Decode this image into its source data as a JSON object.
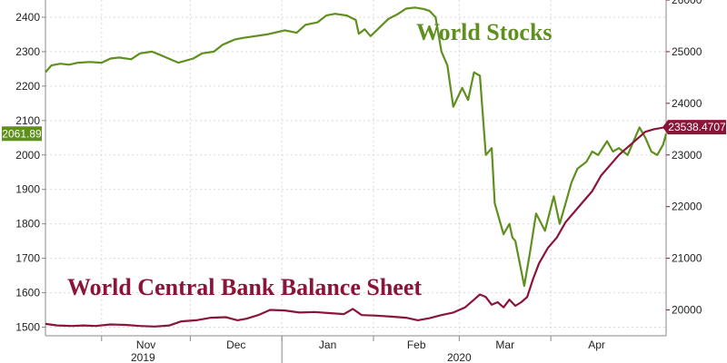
{
  "chart_data": {
    "type": "line",
    "title": "",
    "xlabel": "",
    "ylabel_left": "",
    "ylabel_right": "",
    "x_start": "2019-10-13",
    "x_end": "2020-05-10",
    "x_month_ticks": [
      {
        "label": "Nov",
        "date": "2019-11-01"
      },
      {
        "label": "Dec",
        "date": "2019-12-01"
      },
      {
        "label": "Jan",
        "date": "2020-01-01"
      },
      {
        "label": "Feb",
        "date": "2020-02-01"
      },
      {
        "label": "Mar",
        "date": "2020-03-01"
      },
      {
        "label": "Apr",
        "date": "2020-04-01"
      }
    ],
    "x_year_ticks": [
      {
        "label": "2019",
        "date": "2019-11-15"
      },
      {
        "label": "2020",
        "date": "2020-03-01"
      }
    ],
    "y_left": {
      "ticks": [
        1500,
        1600,
        1700,
        1800,
        1900,
        2000,
        2100,
        2200,
        2300,
        2400
      ],
      "range": [
        1475,
        2450
      ]
    },
    "y_right": {
      "ticks": [
        20000,
        21000,
        22000,
        23000,
        24000,
        25000,
        26000
      ],
      "range": [
        19500,
        26000
      ]
    },
    "grid": true,
    "series": [
      {
        "name": "World Stocks",
        "axis": "left",
        "color": "#5f8f1f",
        "last_value_label": "2061.89",
        "points": [
          [
            "2019-10-13",
            2240
          ],
          [
            "2019-10-15",
            2260
          ],
          [
            "2019-10-18",
            2265
          ],
          [
            "2019-10-21",
            2262
          ],
          [
            "2019-10-24",
            2268
          ],
          [
            "2019-10-28",
            2270
          ],
          [
            "2019-11-01",
            2268
          ],
          [
            "2019-11-04",
            2280
          ],
          [
            "2019-11-07",
            2283
          ],
          [
            "2019-11-11",
            2278
          ],
          [
            "2019-11-14",
            2295
          ],
          [
            "2019-11-18",
            2300
          ],
          [
            "2019-11-21",
            2290
          ],
          [
            "2019-11-25",
            2275
          ],
          [
            "2019-11-27",
            2268
          ],
          [
            "2019-12-02",
            2280
          ],
          [
            "2019-12-05",
            2295
          ],
          [
            "2019-12-09",
            2300
          ],
          [
            "2019-12-12",
            2320
          ],
          [
            "2019-12-16",
            2335
          ],
          [
            "2019-12-19",
            2340
          ],
          [
            "2019-12-23",
            2345
          ],
          [
            "2019-12-27",
            2350
          ],
          [
            "2020-01-02",
            2362
          ],
          [
            "2020-01-06",
            2355
          ],
          [
            "2020-01-09",
            2378
          ],
          [
            "2020-01-13",
            2385
          ],
          [
            "2020-01-16",
            2405
          ],
          [
            "2020-01-19",
            2410
          ],
          [
            "2020-01-23",
            2405
          ],
          [
            "2020-01-26",
            2392
          ],
          [
            "2020-01-27",
            2352
          ],
          [
            "2020-01-29",
            2365
          ],
          [
            "2020-01-31",
            2345
          ],
          [
            "2020-02-03",
            2370
          ],
          [
            "2020-02-06",
            2395
          ],
          [
            "2020-02-09",
            2408
          ],
          [
            "2020-02-12",
            2425
          ],
          [
            "2020-02-15",
            2428
          ],
          [
            "2020-02-18",
            2424
          ],
          [
            "2020-02-20",
            2418
          ],
          [
            "2020-02-22",
            2400
          ],
          [
            "2020-02-24",
            2300
          ],
          [
            "2020-02-26",
            2260
          ],
          [
            "2020-02-28",
            2140
          ],
          [
            "2020-03-02",
            2195
          ],
          [
            "2020-03-04",
            2160
          ],
          [
            "2020-03-06",
            2240
          ],
          [
            "2020-03-08",
            2230
          ],
          [
            "2020-03-10",
            2000
          ],
          [
            "2020-03-12",
            2020
          ],
          [
            "2020-03-13",
            1860
          ],
          [
            "2020-03-16",
            1770
          ],
          [
            "2020-03-18",
            1800
          ],
          [
            "2020-03-19",
            1760
          ],
          [
            "2020-03-20",
            1750
          ],
          [
            "2020-03-23",
            1620
          ],
          [
            "2020-03-25",
            1720
          ],
          [
            "2020-03-27",
            1830
          ],
          [
            "2020-03-30",
            1780
          ],
          [
            "2020-04-02",
            1880
          ],
          [
            "2020-04-04",
            1800
          ],
          [
            "2020-04-06",
            1860
          ],
          [
            "2020-04-08",
            1920
          ],
          [
            "2020-04-10",
            1960
          ],
          [
            "2020-04-13",
            1980
          ],
          [
            "2020-04-15",
            2010
          ],
          [
            "2020-04-17",
            2000
          ],
          [
            "2020-04-20",
            2040
          ],
          [
            "2020-04-22",
            2010
          ],
          [
            "2020-04-24",
            2020
          ],
          [
            "2020-04-27",
            2000
          ],
          [
            "2020-04-29",
            2040
          ],
          [
            "2020-05-01",
            2080
          ],
          [
            "2020-05-03",
            2050
          ],
          [
            "2020-05-05",
            2010
          ],
          [
            "2020-05-07",
            2000
          ],
          [
            "2020-05-09",
            2030
          ],
          [
            "2020-05-10",
            2061.89
          ]
        ]
      },
      {
        "name": "World Central Bank Balance Sheet",
        "axis": "right",
        "color": "#8a1538",
        "last_value_label": "23538.4707",
        "points": [
          [
            "2019-10-13",
            19730
          ],
          [
            "2019-10-17",
            19700
          ],
          [
            "2019-10-22",
            19690
          ],
          [
            "2019-10-26",
            19700
          ],
          [
            "2019-10-30",
            19690
          ],
          [
            "2019-11-04",
            19720
          ],
          [
            "2019-11-09",
            19710
          ],
          [
            "2019-11-14",
            19690
          ],
          [
            "2019-11-19",
            19680
          ],
          [
            "2019-11-24",
            19700
          ],
          [
            "2019-11-28",
            19780
          ],
          [
            "2019-12-03",
            19800
          ],
          [
            "2019-12-08",
            19850
          ],
          [
            "2019-12-13",
            19860
          ],
          [
            "2019-12-17",
            19800
          ],
          [
            "2019-12-20",
            19830
          ],
          [
            "2019-12-24",
            19900
          ],
          [
            "2019-12-28",
            20000
          ],
          [
            "2020-01-02",
            19990
          ],
          [
            "2020-01-07",
            19950
          ],
          [
            "2020-01-12",
            19960
          ],
          [
            "2020-01-17",
            19940
          ],
          [
            "2020-01-22",
            19920
          ],
          [
            "2020-01-25",
            20020
          ],
          [
            "2020-01-28",
            19900
          ],
          [
            "2020-02-02",
            19890
          ],
          [
            "2020-02-07",
            19870
          ],
          [
            "2020-02-12",
            19850
          ],
          [
            "2020-02-16",
            19800
          ],
          [
            "2020-02-20",
            19840
          ],
          [
            "2020-02-24",
            19900
          ],
          [
            "2020-02-28",
            19950
          ],
          [
            "2020-03-03",
            20050
          ],
          [
            "2020-03-06",
            20200
          ],
          [
            "2020-03-08",
            20300
          ],
          [
            "2020-03-10",
            20250
          ],
          [
            "2020-03-12",
            20100
          ],
          [
            "2020-03-14",
            20150
          ],
          [
            "2020-03-16",
            20050
          ],
          [
            "2020-03-18",
            20200
          ],
          [
            "2020-03-20",
            20080
          ],
          [
            "2020-03-22",
            20150
          ],
          [
            "2020-03-24",
            20250
          ],
          [
            "2020-03-26",
            20600
          ],
          [
            "2020-03-28",
            20900
          ],
          [
            "2020-03-31",
            21200
          ],
          [
            "2020-04-03",
            21400
          ],
          [
            "2020-04-06",
            21700
          ],
          [
            "2020-04-09",
            21900
          ],
          [
            "2020-04-12",
            22100
          ],
          [
            "2020-04-15",
            22300
          ],
          [
            "2020-04-18",
            22600
          ],
          [
            "2020-04-21",
            22800
          ],
          [
            "2020-04-24",
            23000
          ],
          [
            "2020-04-27",
            23150
          ],
          [
            "2020-04-30",
            23300
          ],
          [
            "2020-05-03",
            23450
          ],
          [
            "2020-05-06",
            23500
          ],
          [
            "2020-05-08",
            23520
          ],
          [
            "2020-05-10",
            23538.4707
          ]
        ]
      }
    ],
    "annotations": [
      {
        "text": "World Stocks",
        "color": "#5f8f1f"
      },
      {
        "text": "World Central Bank Balance Sheet",
        "color": "#8a1538"
      }
    ]
  }
}
